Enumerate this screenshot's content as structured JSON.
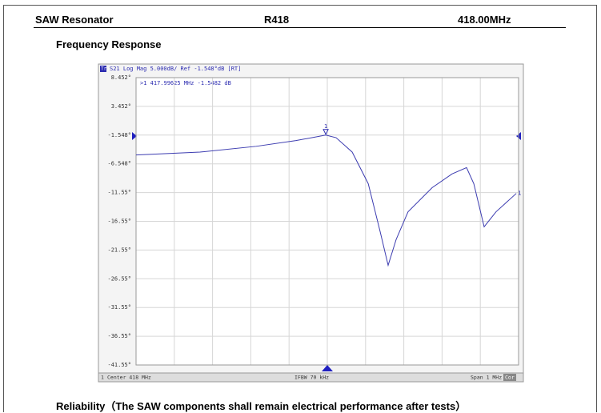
{
  "header": {
    "part": "SAW Resonator",
    "model": "R418",
    "frequency": "418.00MHz"
  },
  "section_title": "Frequency Response",
  "chart_data": {
    "type": "line",
    "trace": "Tr1",
    "title": "S21 Log Mag 5.000dB/ Ref -1.548°dB [RT]",
    "marker_readout": ">1  417.99625 MHz -1.5482 dB",
    "marker_label": "1",
    "x": [
      417.5,
      417.667,
      417.814,
      417.918,
      417.996,
      418.023,
      418.065,
      418.107,
      418.138,
      418.159,
      418.18,
      418.211,
      418.274,
      418.326,
      418.364,
      418.383,
      418.41,
      418.441,
      418.494
    ],
    "series": [
      {
        "color": "#3c3cb0",
        "values": [
          -5.0,
          -4.5,
          -3.5,
          -2.5,
          -1.548,
          -2.0,
          -4.5,
          -10.0,
          -18.3,
          -24.2,
          -19.7,
          -14.9,
          -10.7,
          -8.3,
          -7.2,
          -10.0,
          -17.5,
          -14.9,
          -11.7
        ]
      }
    ],
    "xlim": [
      417.5,
      418.5
    ],
    "ylim": [
      -41.548,
      8.452
    ],
    "yticks": [
      {
        "value": 8.452,
        "label": "8.452°"
      },
      {
        "value": 3.452,
        "label": "3.452°"
      },
      {
        "value": -1.548,
        "label": "-1.548°"
      },
      {
        "value": -6.548,
        "label": "-6.548°"
      },
      {
        "value": -11.548,
        "label": "-11.55°"
      },
      {
        "value": -16.548,
        "label": "-16.55°"
      },
      {
        "value": -21.548,
        "label": "-21.55°"
      },
      {
        "value": -26.548,
        "label": "-26.55°"
      },
      {
        "value": -31.548,
        "label": "-31.55°"
      },
      {
        "value": -36.548,
        "label": "-36.55°"
      },
      {
        "value": -41.548,
        "label": "-41.55°"
      }
    ],
    "grid": true,
    "status": {
      "channel": "1",
      "center": "Center 418 MHz",
      "ifbw": "IFBW 70 kHz",
      "span": "Span 1 MHz",
      "correction": "Cor"
    }
  },
  "footer": "Reliability（The SAW components shall remain electrical performance after tests）"
}
